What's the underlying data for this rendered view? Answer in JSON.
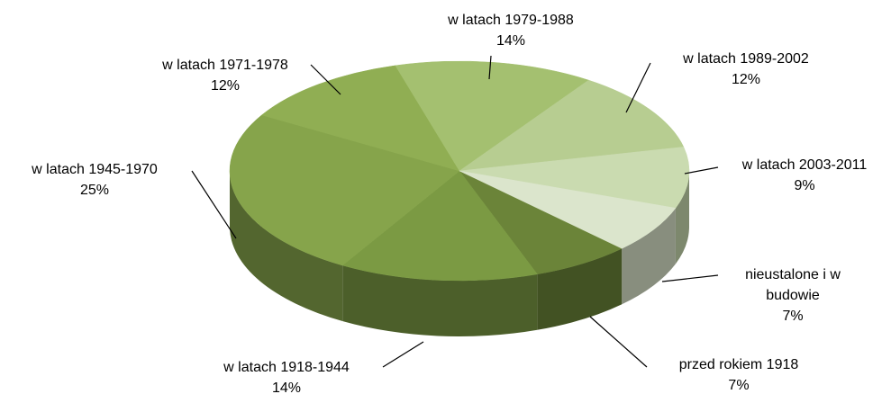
{
  "chart_data": {
    "type": "pie3d",
    "categories": [
      "przed rokiem 1918",
      "w latach 1918-1944",
      "w latach 1945-1970",
      "w latach 1971-1978",
      "w latach 1979-1988",
      "w latach 1989-2002",
      "w latach 2003-2011",
      "nieustalone i w budowie"
    ],
    "values": [
      7,
      14,
      25,
      12,
      14,
      12,
      9,
      7
    ],
    "value_labels": [
      "7%",
      "14%",
      "25%",
      "12%",
      "14%",
      "12%",
      "9%",
      "7%"
    ],
    "colors": [
      "#6b8439",
      "#7b9a43",
      "#86a44b",
      "#90ae53",
      "#a4c070",
      "#b7cd91",
      "#cadbb0",
      "#dbe5cc"
    ]
  }
}
